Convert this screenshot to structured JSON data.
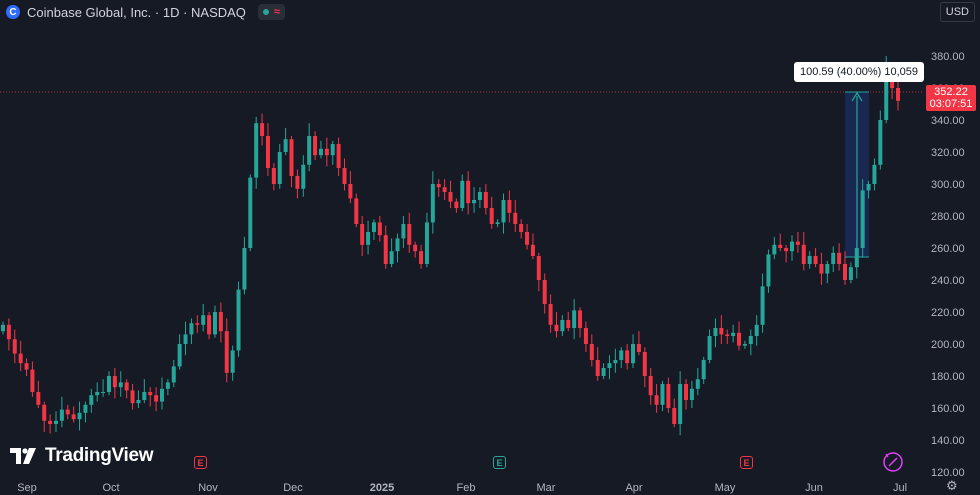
{
  "header": {
    "title": "Coinbase Global, Inc. · 1D · NASDAQ",
    "logo_letter": "C",
    "status_symbol": "≈"
  },
  "currency": "USD",
  "branding": "TradingView",
  "price_label": {
    "price": "352.22",
    "countdown": "03:07:51"
  },
  "measure_label": "100.59 (40.00%) 10,059",
  "earnings_badges": [
    {
      "label": "E",
      "color": "red",
      "month": "Nov"
    },
    {
      "label": "E",
      "color": "green",
      "month": "Feb"
    },
    {
      "label": "E",
      "color": "red",
      "month": "May"
    }
  ],
  "colors": {
    "up": "#26a69a",
    "down": "#f23645",
    "background": "#161a25",
    "accent": "#e040fb"
  },
  "chart_data": {
    "type": "candlestick",
    "title": "Coinbase Global, Inc. · 1D · NASDAQ",
    "ylim": [
      120,
      390
    ],
    "y_ticks": [
      120,
      140,
      160,
      180,
      200,
      220,
      240,
      260,
      280,
      300,
      320,
      340,
      360,
      380
    ],
    "x_tick_labels": [
      "Sep",
      "Oct",
      "Nov",
      "Dec",
      "2025",
      "Feb",
      "Mar",
      "Apr",
      "May",
      "Jun",
      "Jul"
    ],
    "last_price": 352.22,
    "grid": false,
    "closes": [
      212,
      203,
      194,
      188,
      184,
      170,
      162,
      152,
      150,
      152,
      159,
      156,
      153,
      157,
      162,
      168,
      170,
      170,
      180,
      173,
      176,
      171,
      163,
      165,
      170,
      168,
      164,
      172,
      176,
      186,
      200,
      206,
      213,
      212,
      218,
      206,
      220,
      208,
      182,
      196,
      234,
      260,
      304,
      338,
      330,
      310,
      300,
      320,
      328,
      305,
      297,
      312,
      330,
      318,
      322,
      318,
      325,
      310,
      300,
      291,
      275,
      262,
      270,
      276,
      268,
      250,
      258,
      266,
      275,
      262,
      258,
      250,
      276,
      300,
      298,
      295,
      289,
      285,
      302,
      288,
      290,
      295,
      285,
      275,
      276,
      290,
      282,
      275,
      270,
      262,
      255,
      240,
      225,
      212,
      208,
      215,
      210,
      221,
      210,
      200,
      190,
      180,
      185,
      188,
      190,
      196,
      188,
      200,
      195,
      180,
      168,
      162,
      175,
      160,
      150,
      175,
      165,
      172,
      178,
      190,
      205,
      210,
      206,
      205,
      207,
      199,
      200,
      205,
      212,
      236,
      256,
      262,
      260,
      258,
      264,
      262,
      250,
      255,
      250,
      244,
      250,
      257,
      250,
      240,
      248,
      260,
      296,
      300,
      312,
      340,
      372,
      360,
      352
    ]
  }
}
